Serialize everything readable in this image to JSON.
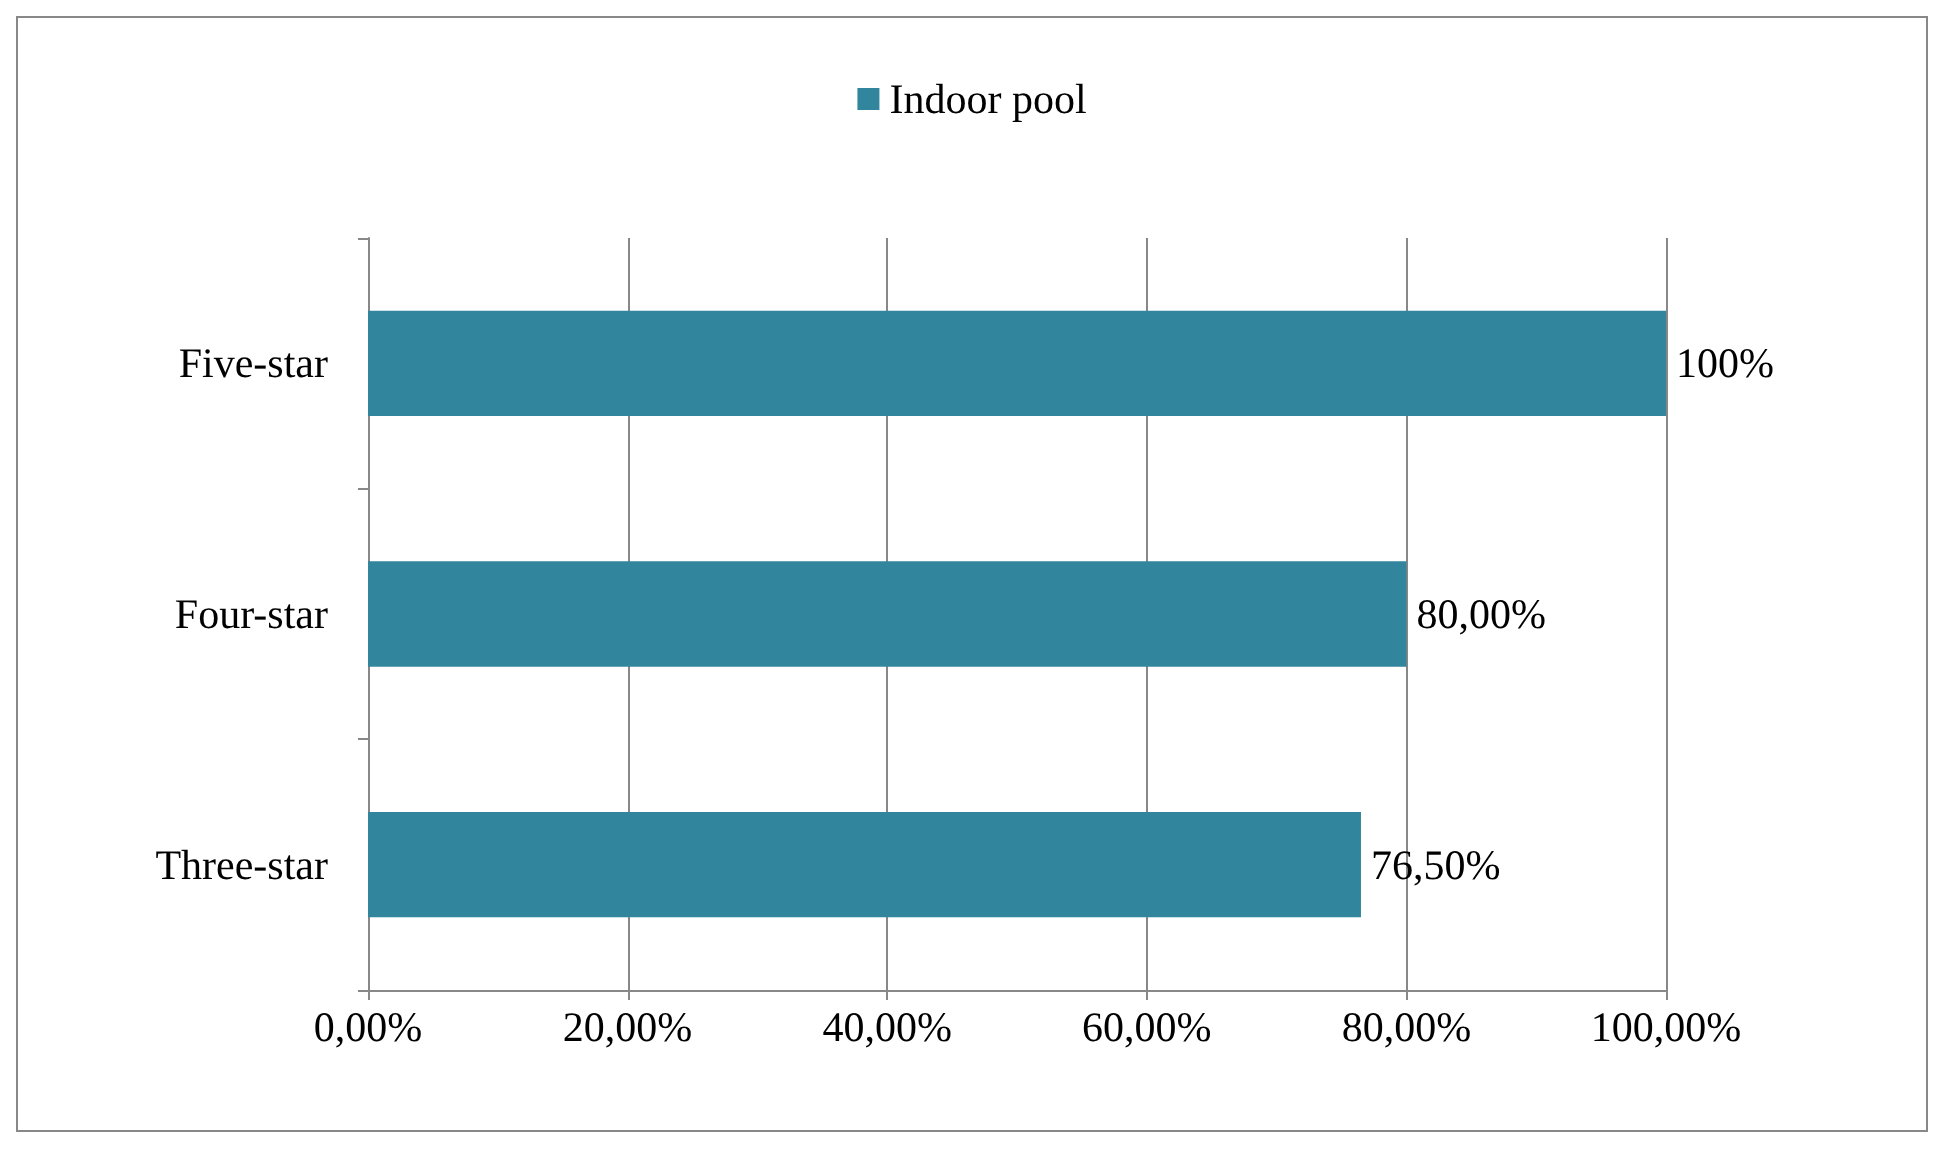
{
  "chart_data": {
    "type": "bar",
    "orientation": "horizontal",
    "categories": [
      "Five-star",
      "Four-star",
      "Three-star"
    ],
    "series": [
      {
        "name": "Indoor pool",
        "color": "#31859c",
        "values": [
          100,
          80,
          76.5
        ],
        "value_labels": [
          "100%",
          "80,00%",
          "76,50%"
        ]
      }
    ],
    "xlim": [
      0,
      100
    ],
    "xticks": [
      {
        "value": 0,
        "label": "0,00%"
      },
      {
        "value": 20,
        "label": "20,00%"
      },
      {
        "value": 40,
        "label": "40,00%"
      },
      {
        "value": 60,
        "label": "60,00%"
      },
      {
        "value": 80,
        "label": "80,00%"
      },
      {
        "value": 100,
        "label": "100,00%"
      }
    ],
    "grid": "x",
    "legend": "top"
  }
}
